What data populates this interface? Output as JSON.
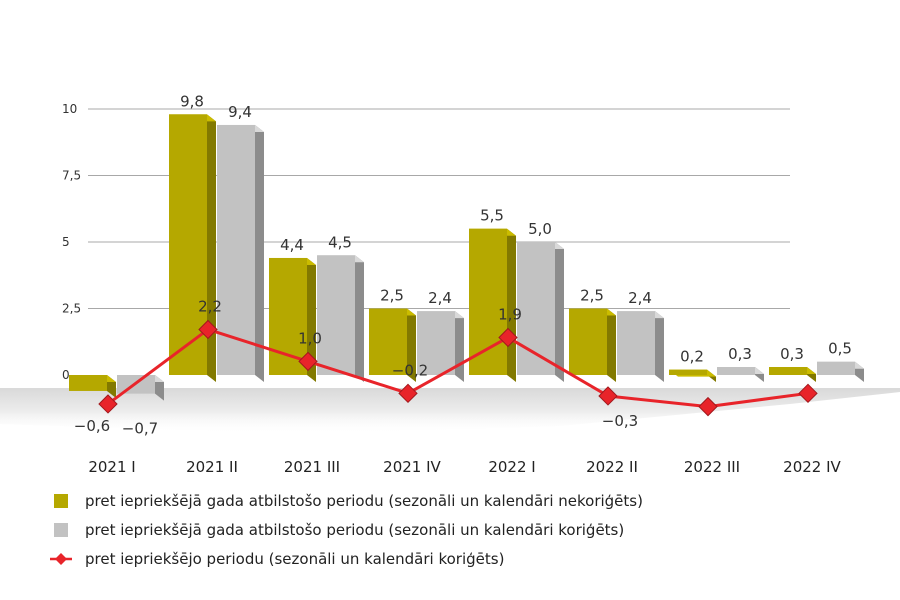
{
  "chart_data": {
    "type": "bar",
    "categories": [
      "2021 I",
      "2021 II",
      "2021 III",
      "2021 IV",
      "2022 I",
      "2022 II",
      "2022 III",
      "2022 IV"
    ],
    "series": [
      {
        "name": "pret iepriekšējā gada atbilstošo periodu (sezonāli un kalendāri nekoriģēts)",
        "kind": "bar",
        "color": "#b5a800",
        "values": [
          -0.6,
          9.8,
          4.4,
          2.5,
          5.5,
          2.5,
          0.2,
          0.3
        ],
        "labels": [
          "−0,6",
          "9,8",
          "4,4",
          "2,5",
          "5,5",
          "2,5",
          "0,2",
          "0,3"
        ]
      },
      {
        "name": "pret iepriekšējā gada atbilstošo periodu (sezonāli un kalendāri koriģēts)",
        "kind": "bar",
        "color": "#c2c2c2",
        "values": [
          -0.7,
          9.4,
          4.5,
          2.4,
          5.0,
          2.4,
          0.3,
          0.5
        ],
        "labels": [
          "−0,7",
          "9,4",
          "4,5",
          "2,4",
          "5,0",
          "2,4",
          "0,3",
          "0,5"
        ]
      },
      {
        "name": "pret iepriekšējo periodu (sezonāli un kalendāri koriģēts)",
        "kind": "line",
        "color": "#e8242a",
        "values": [
          -0.6,
          2.2,
          1.0,
          -0.2,
          1.9,
          -0.3,
          -0.7,
          -0.2
        ],
        "labels": [
          "",
          "2,2",
          "1,0",
          "−0,2",
          "1,9",
          "−0,3",
          "",
          ""
        ]
      }
    ],
    "ylim": [
      -1.5,
      10
    ],
    "yticks": [
      0,
      2.5,
      5,
      7.5,
      10
    ],
    "ytick_labels": [
      "0",
      "2,5",
      "5",
      "7,5",
      "10"
    ],
    "grid": true,
    "legend_position": "bottom-left",
    "title": "",
    "xlabel": "",
    "ylabel": ""
  }
}
